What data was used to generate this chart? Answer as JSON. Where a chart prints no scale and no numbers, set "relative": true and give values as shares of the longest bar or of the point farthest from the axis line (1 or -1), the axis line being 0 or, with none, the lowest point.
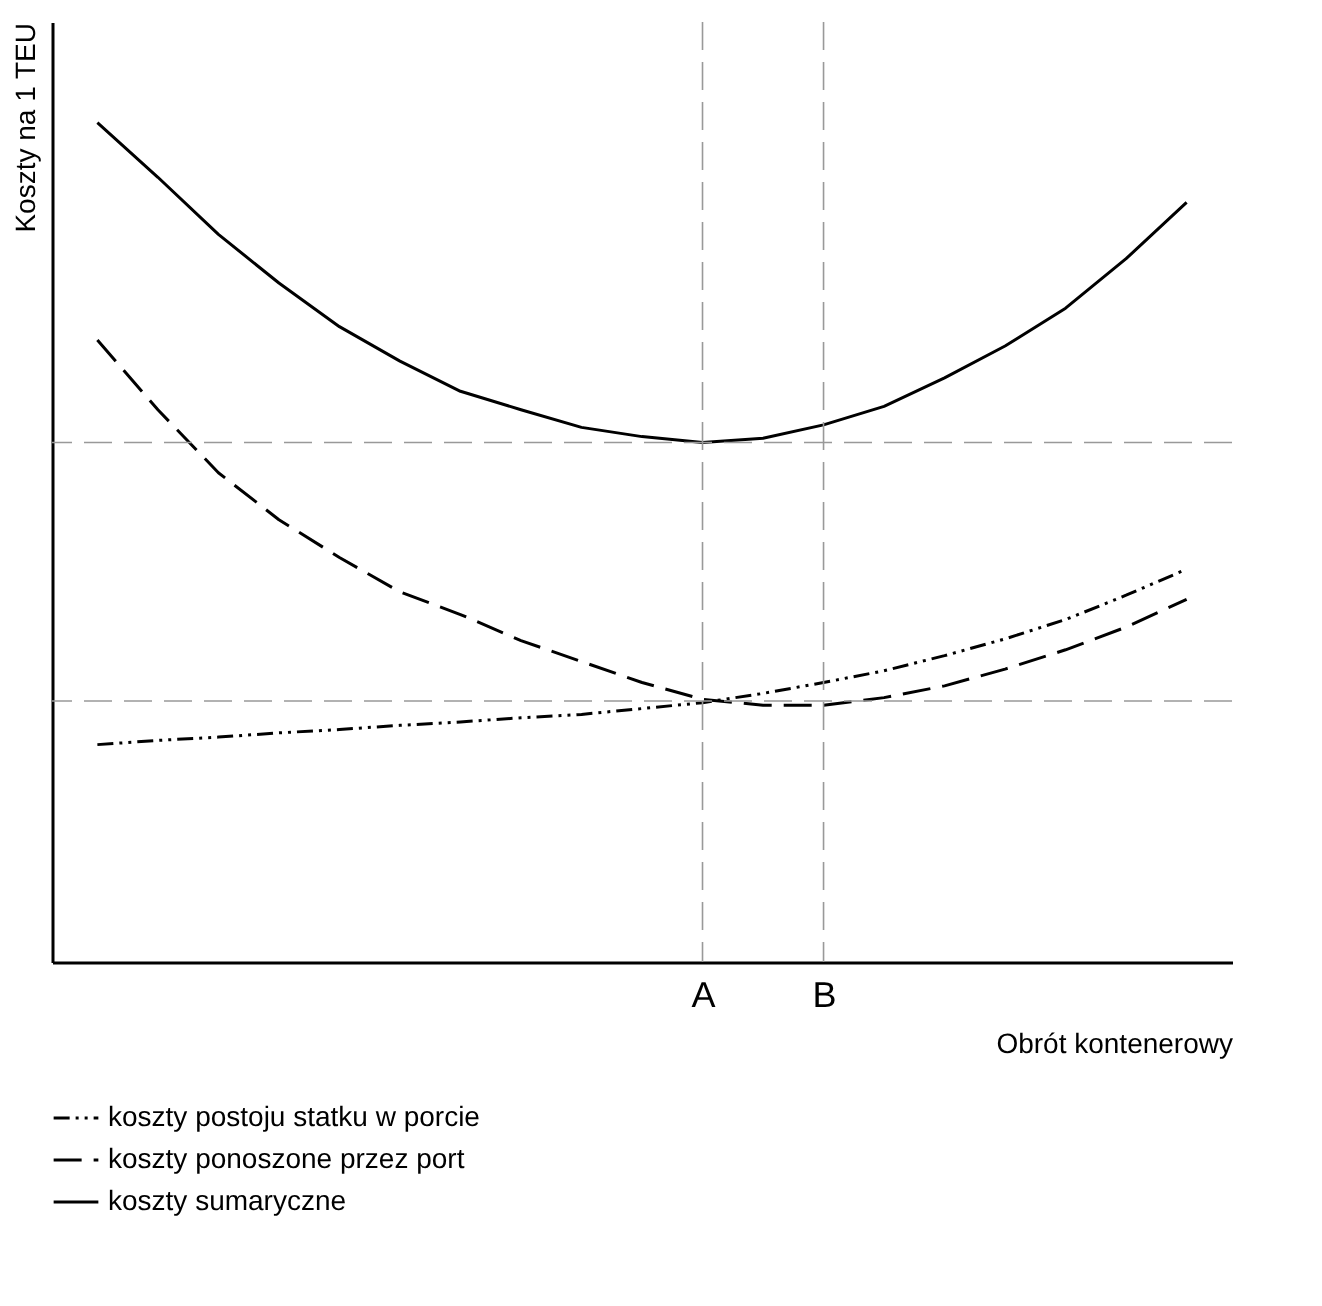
{
  "chart_data": {
    "type": "line",
    "relative": true,
    "xlabel": "Obrót kontenerowy",
    "ylabel": "Koszty na 1 TEU",
    "tick_labels": "x",
    "grid": false,
    "legend": "bottom",
    "marker": "none",
    "categories": [
      null,
      null,
      null,
      null,
      null,
      null,
      null,
      null,
      null,
      null,
      "A",
      null,
      "B",
      null,
      null,
      null,
      null,
      null,
      null
    ],
    "series": [
      {
        "name": "koszty postoju statku w porcie",
        "color": "#000000",
        "line_style": "dotted",
        "values": [
          0.259,
          0.264,
          0.268,
          0.273,
          0.277,
          0.282,
          0.286,
          0.291,
          0.295,
          0.302,
          0.309,
          0.32,
          0.333,
          0.347,
          0.365,
          0.385,
          0.408,
          0.437,
          0.468
        ]
      },
      {
        "name": "koszty ponoszone przez port",
        "color": "#000000",
        "line_style": "dashed",
        "values": [
          0.741,
          0.658,
          0.583,
          0.527,
          0.482,
          0.441,
          0.414,
          0.383,
          0.358,
          0.333,
          0.313,
          0.306,
          0.306,
          0.315,
          0.329,
          0.349,
          0.372,
          0.399,
          0.432
        ]
      },
      {
        "name": "koszty sumaryczne",
        "color": "#000000",
        "line_style": "solid",
        "values": [
          1.0,
          0.935,
          0.867,
          0.809,
          0.757,
          0.716,
          0.68,
          0.658,
          0.637,
          0.626,
          0.619,
          0.624,
          0.64,
          0.662,
          0.696,
          0.734,
          0.779,
          0.838,
          0.905
        ]
      }
    ],
    "ref_lines": [
      {
        "axis": "x",
        "value": "A",
        "color": "#999999",
        "line_style": "dashed"
      },
      {
        "axis": "x",
        "value": "B",
        "color": "#999999",
        "line_style": "dashed"
      },
      {
        "axis": "y",
        "value": 0.619,
        "color": "#999999",
        "line_style": "dashed"
      },
      {
        "axis": "y",
        "value": 0.311,
        "color": "#999999",
        "line_style": "dashed"
      }
    ]
  }
}
